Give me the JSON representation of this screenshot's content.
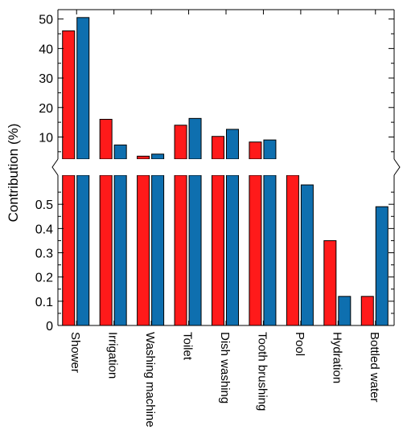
{
  "chart_data": {
    "type": "bar",
    "ylabel": "Contribution (%)",
    "xlabel": "",
    "axis_break": true,
    "categories": [
      "Shower",
      "Irrigation",
      "Washing machine",
      "Toilet",
      "Dish washing",
      "Tooth brushing",
      "Pool",
      "Hydration",
      "Bottled water"
    ],
    "series": [
      {
        "color": "#ff1a1a",
        "values": [
          46,
          16,
          3.5,
          14,
          10.2,
          8.3,
          2.5,
          0.35,
          0.12
        ]
      },
      {
        "color": "#0e6faf",
        "values": [
          50.5,
          7.3,
          4.2,
          16.3,
          12.6,
          9,
          0.58,
          0.12,
          0.49
        ]
      }
    ],
    "upper_axis": {
      "ylim": [
        2.5,
        51
      ],
      "ticks": [
        10,
        20,
        30,
        40,
        50
      ]
    },
    "lower_axis": {
      "ylim": [
        0,
        0.62
      ],
      "ticks": [
        0,
        0.1,
        0.2,
        0.3,
        0.4,
        0.5
      ]
    },
    "grid": false,
    "legend": "none"
  }
}
